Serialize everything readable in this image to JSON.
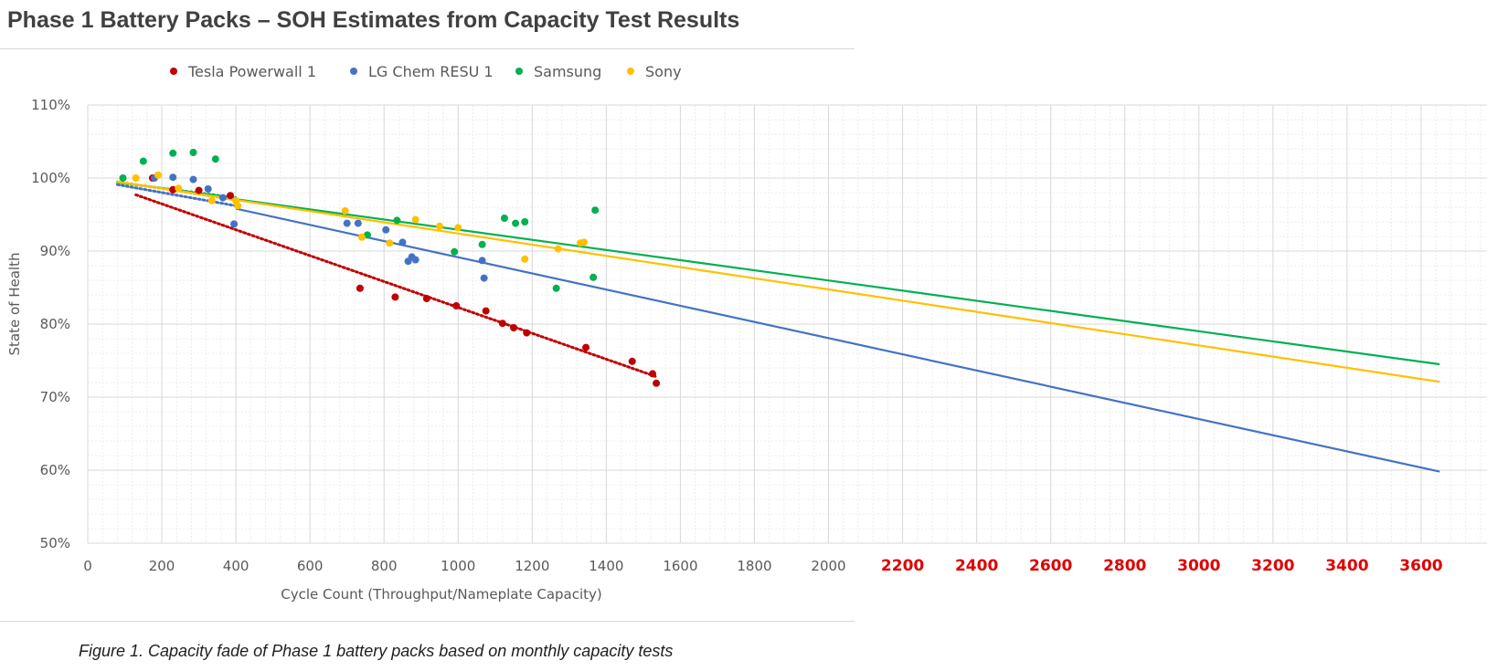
{
  "header": {
    "title": "Phase 1 Battery Packs – SOH Estimates from Capacity Test Results"
  },
  "footer": {
    "caption": "Figure 1. Capacity fade of Phase 1 battery packs based on monthly capacity tests"
  },
  "colors": {
    "tesla": "#c00000",
    "lg": "#4472c4",
    "samsung": "#00b050",
    "sony": "#ffc000",
    "extended_ticks": "#e00000",
    "axis_text": "#595959",
    "grid": "#d9d9d9"
  },
  "chart_data": {
    "type": "scatter",
    "title": "",
    "xlabel": "Cycle Count (Throughput/Nameplate Capacity)",
    "ylabel": "State of Health",
    "xlim": [
      0,
      3800
    ],
    "ylim": [
      50,
      110
    ],
    "x_ticks": [
      "0",
      "200",
      "400",
      "600",
      "800",
      "1000",
      "1200",
      "1400",
      "1600",
      "1800",
      "2000",
      "2200",
      "2400",
      "2600",
      "2800",
      "3000",
      "3200",
      "3400",
      "3600"
    ],
    "x_tick_values": [
      0,
      200,
      400,
      600,
      800,
      1000,
      1200,
      1400,
      1600,
      1800,
      2000,
      2200,
      2400,
      2600,
      2800,
      3000,
      3200,
      3400,
      3600
    ],
    "x_extended_from": 2200,
    "y_ticks": [
      "50%",
      "60%",
      "70%",
      "80%",
      "90%",
      "100%",
      "110%"
    ],
    "y_tick_values": [
      50,
      60,
      70,
      80,
      90,
      100,
      110
    ],
    "grid": true,
    "legend_position": "top",
    "series": [
      {
        "name": "Tesla Powerwall 1",
        "color_key": "tesla",
        "points": [
          [
            175,
            100
          ],
          [
            230,
            98.4
          ],
          [
            300,
            98.3
          ],
          [
            385,
            97.6
          ],
          [
            735,
            84.9
          ],
          [
            830,
            83.7
          ],
          [
            915,
            83.5
          ],
          [
            995,
            82.5
          ],
          [
            1075,
            81.8
          ],
          [
            1120,
            80.1
          ],
          [
            1150,
            79.5
          ],
          [
            1185,
            78.8
          ],
          [
            1345,
            76.8
          ],
          [
            1470,
            74.9
          ],
          [
            1525,
            73.2
          ],
          [
            1535,
            71.9
          ]
        ],
        "trendline": {
          "style": "dotted",
          "from": [
            130,
            97.7
          ],
          "to": [
            1535,
            72.8
          ]
        }
      },
      {
        "name": "LG Chem RESU 1",
        "color_key": "lg",
        "points": [
          [
            180,
            100
          ],
          [
            230,
            100.1
          ],
          [
            285,
            99.8
          ],
          [
            325,
            98.5
          ],
          [
            365,
            97.3
          ],
          [
            395,
            93.7
          ],
          [
            700,
            93.8
          ],
          [
            730,
            93.8
          ],
          [
            805,
            92.9
          ],
          [
            850,
            91.2
          ],
          [
            865,
            88.6
          ],
          [
            875,
            89.2
          ],
          [
            885,
            88.8
          ],
          [
            1065,
            88.7
          ],
          [
            1070,
            86.3
          ]
        ],
        "trendline": {
          "style": "dotted",
          "from": [
            80,
            99.1
          ],
          "to": [
            400,
            96.2
          ]
        },
        "projection": {
          "style": "solid",
          "from": [
            400,
            95.8
          ],
          "to": [
            3650,
            59.8
          ]
        }
      },
      {
        "name": "Samsung",
        "color_key": "samsung",
        "points": [
          [
            95,
            100
          ],
          [
            150,
            102.3
          ],
          [
            230,
            103.4
          ],
          [
            285,
            103.5
          ],
          [
            345,
            102.6
          ],
          [
            755,
            92.2
          ],
          [
            835,
            94.2
          ],
          [
            990,
            89.9
          ],
          [
            1065,
            90.9
          ],
          [
            1125,
            94.5
          ],
          [
            1155,
            93.8
          ],
          [
            1180,
            94
          ],
          [
            1265,
            84.9
          ],
          [
            1365,
            86.4
          ],
          [
            1370,
            95.6
          ]
        ],
        "trendline": {
          "style": "dotted",
          "from": [
            80,
            99.4
          ],
          "to": [
            400,
            97.3
          ]
        },
        "projection": {
          "style": "solid",
          "from": [
            400,
            97.1
          ],
          "to": [
            3650,
            74.5
          ]
        }
      },
      {
        "name": "Sony",
        "color_key": "sony",
        "points": [
          [
            130,
            100
          ],
          [
            190,
            100.4
          ],
          [
            245,
            98.6
          ],
          [
            335,
            96.9
          ],
          [
            400,
            96.9
          ],
          [
            405,
            96.2
          ],
          [
            695,
            95.5
          ],
          [
            740,
            91.9
          ],
          [
            815,
            91.1
          ],
          [
            885,
            94.3
          ],
          [
            950,
            93.4
          ],
          [
            1000,
            93.2
          ],
          [
            1180,
            88.9
          ],
          [
            1270,
            90.3
          ],
          [
            1330,
            91.1
          ],
          [
            1340,
            91.2
          ]
        ],
        "trendline": {
          "style": "dotted",
          "from": [
            80,
            99.5
          ],
          "to": [
            400,
            97
          ]
        },
        "projection": {
          "style": "solid",
          "from": [
            400,
            97
          ],
          "to": [
            3650,
            72.1
          ]
        }
      }
    ]
  }
}
